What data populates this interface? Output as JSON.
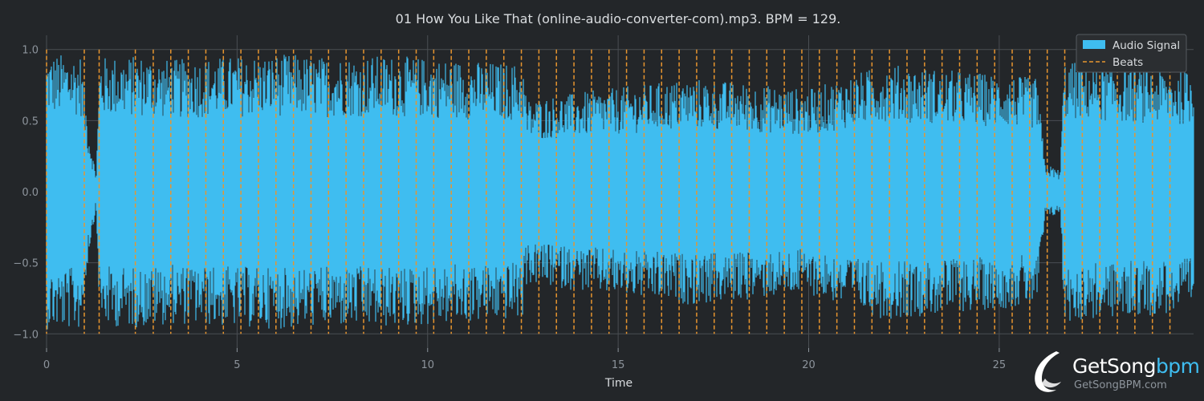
{
  "chart_data": {
    "type": "line",
    "title": "01 How You Like That (online-audio-converter-com).mp3. BPM = 129.",
    "xlabel": "Time",
    "ylabel": "",
    "xlim": [
      0,
      30.1
    ],
    "ylim": [
      -1.1,
      1.1
    ],
    "x_ticks": [
      0,
      5,
      10,
      15,
      20,
      25
    ],
    "y_ticks": [
      1.0,
      0.5,
      0.0,
      -0.5,
      -1.0
    ],
    "y_tick_labels": [
      "1.0",
      "0.5",
      "0.0",
      "−0.5",
      "−1.0"
    ],
    "grid": true,
    "legend_position": "top-right",
    "series": [
      {
        "name": "Audio Signal",
        "color": "#3fbdf0",
        "envelope": [
          {
            "t": 0.0,
            "a": 0.97
          },
          {
            "t": 0.9,
            "a": 0.97
          },
          {
            "t": 1.1,
            "a": 0.45
          },
          {
            "t": 1.3,
            "a": 0.12
          },
          {
            "t": 1.4,
            "a": 0.95
          },
          {
            "t": 2.6,
            "a": 0.96
          },
          {
            "t": 3.2,
            "a": 0.93
          },
          {
            "t": 4.5,
            "a": 0.95
          },
          {
            "t": 6.5,
            "a": 0.97
          },
          {
            "t": 7.0,
            "a": 0.95
          },
          {
            "t": 9.0,
            "a": 0.96
          },
          {
            "t": 11.2,
            "a": 0.92
          },
          {
            "t": 12.5,
            "a": 0.9
          },
          {
            "t": 12.6,
            "a": 0.65
          },
          {
            "t": 14.0,
            "a": 0.7
          },
          {
            "t": 17.0,
            "a": 0.8
          },
          {
            "t": 20.0,
            "a": 0.72
          },
          {
            "t": 22.0,
            "a": 0.9
          },
          {
            "t": 24.0,
            "a": 0.85
          },
          {
            "t": 26.0,
            "a": 0.8
          },
          {
            "t": 26.2,
            "a": 0.2
          },
          {
            "t": 26.6,
            "a": 0.15
          },
          {
            "t": 26.7,
            "a": 0.92
          },
          {
            "t": 30.1,
            "a": 0.85
          }
        ]
      },
      {
        "name": "Beats",
        "color": "#e8952f",
        "style": "dashed",
        "x": [
          0.0,
          0.99,
          1.38,
          2.33,
          2.8,
          3.26,
          3.72,
          4.18,
          4.64,
          5.1,
          5.56,
          6.02,
          6.48,
          6.94,
          7.4,
          7.86,
          8.32,
          8.78,
          9.24,
          9.7,
          10.16,
          10.62,
          11.08,
          11.54,
          12.0,
          12.46,
          12.92,
          13.38,
          13.84,
          14.3,
          14.76,
          15.22,
          15.68,
          16.14,
          16.6,
          17.06,
          17.52,
          17.98,
          18.44,
          18.9,
          19.36,
          19.82,
          20.28,
          20.74,
          21.2,
          21.66,
          22.12,
          22.58,
          23.04,
          23.5,
          23.96,
          24.42,
          24.88,
          25.34,
          25.8,
          26.26,
          26.72,
          27.18,
          27.64,
          28.1,
          28.56,
          29.02,
          29.48
        ]
      }
    ]
  },
  "watermark": {
    "brand_main": "GetSong",
    "brand_accent": "bpm",
    "url": "GetSongBPM.com"
  }
}
